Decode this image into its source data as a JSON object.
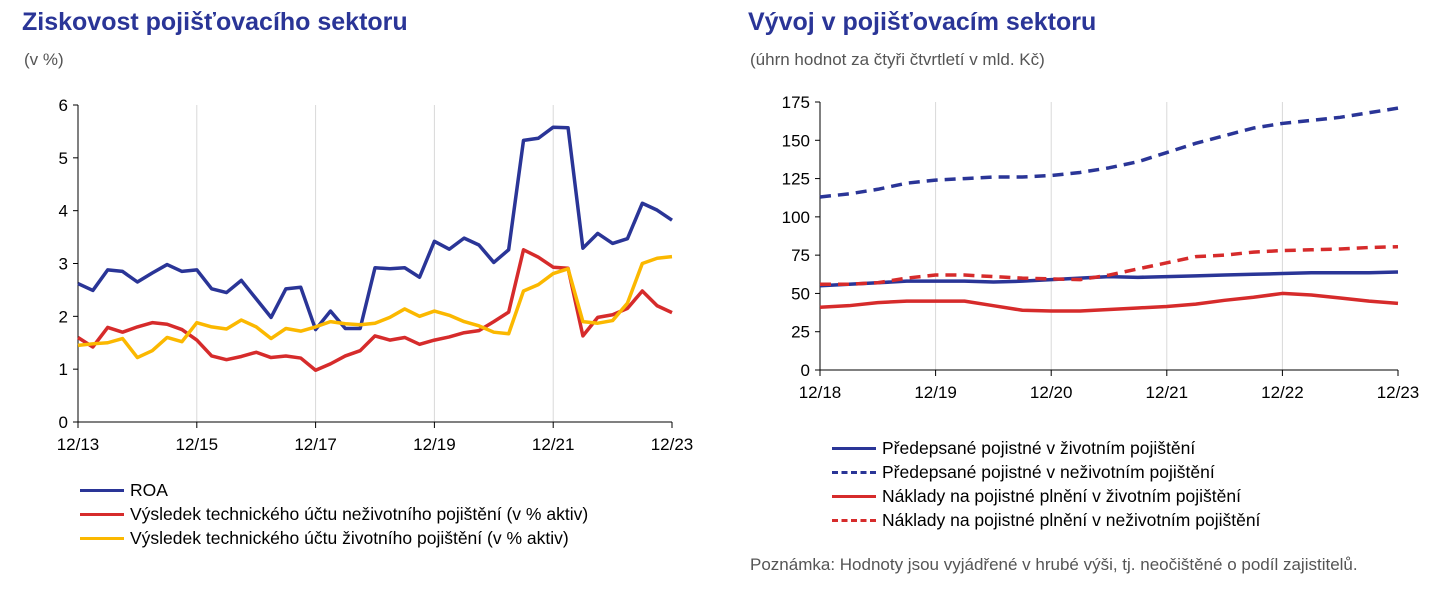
{
  "chart_data": [
    {
      "type": "line",
      "title": "Ziskovost pojišťovacího sektoru",
      "subtitle": "(v %)",
      "x_ticks": [
        "12/13",
        "12/15",
        "12/17",
        "12/19",
        "12/21",
        "12/23"
      ],
      "x_start": "12/13",
      "x_end": "12/23",
      "ylim": [
        0,
        6
      ],
      "y_ticks": [
        0,
        1,
        2,
        3,
        4,
        5,
        6
      ],
      "grid": "vertical",
      "legend_position": "bottom",
      "series": [
        {
          "name": "ROA",
          "color": "#2a3597",
          "dash": "solid",
          "values": [
            2.62,
            2.49,
            2.88,
            2.85,
            2.65,
            2.82,
            2.98,
            2.85,
            2.88,
            2.52,
            2.45,
            2.68,
            2.33,
            1.98,
            2.52,
            2.55,
            1.75,
            2.1,
            1.77,
            1.77,
            2.92,
            2.9,
            2.92,
            2.74,
            3.42,
            3.27,
            3.48,
            3.35,
            3.02,
            3.26,
            5.33,
            5.37,
            5.58,
            5.57,
            3.29,
            3.57,
            3.38,
            3.47,
            4.14,
            4.01,
            3.82
          ]
        },
        {
          "name": "Výsledek technického účtu neživotního pojištění (v % aktiv)",
          "color": "#d62b2b",
          "dash": "solid",
          "values": [
            1.6,
            1.42,
            1.79,
            1.7,
            1.8,
            1.88,
            1.85,
            1.75,
            1.55,
            1.25,
            1.18,
            1.24,
            1.32,
            1.22,
            1.25,
            1.21,
            0.98,
            1.1,
            1.25,
            1.35,
            1.63,
            1.55,
            1.6,
            1.47,
            1.55,
            1.61,
            1.69,
            1.73,
            1.9,
            2.08,
            3.26,
            3.12,
            2.93,
            2.91,
            1.63,
            1.98,
            2.03,
            2.15,
            2.48,
            2.2,
            2.07
          ]
        },
        {
          "name": "Výsledek technického účtu životního pojištění (v % aktiv)",
          "color": "#fbb800",
          "dash": "solid",
          "values": [
            1.45,
            1.48,
            1.5,
            1.58,
            1.22,
            1.35,
            1.6,
            1.52,
            1.88,
            1.8,
            1.76,
            1.93,
            1.8,
            1.58,
            1.77,
            1.72,
            1.8,
            1.9,
            1.86,
            1.84,
            1.87,
            1.98,
            2.14,
            2.0,
            2.1,
            2.02,
            1.9,
            1.82,
            1.7,
            1.67,
            2.48,
            2.6,
            2.81,
            2.9,
            1.9,
            1.87,
            1.92,
            2.25,
            3.0,
            3.1,
            3.13
          ]
        }
      ]
    },
    {
      "type": "line",
      "title": "Vývoj v pojišťovacím sektoru",
      "subtitle": "(úhrn hodnot za čtyři čtvrtletí v mld. Kč)",
      "x_ticks": [
        "12/18",
        "12/19",
        "12/20",
        "12/21",
        "12/22",
        "12/23"
      ],
      "x_start": "12/18",
      "x_end": "12/23",
      "ylim": [
        0,
        175
      ],
      "y_ticks": [
        0,
        25,
        50,
        75,
        100,
        125,
        150,
        175
      ],
      "grid": "vertical",
      "legend_position": "bottom",
      "series": [
        {
          "name": "Předepsané pojistné v životním pojištění",
          "color": "#2a3597",
          "dash": "solid",
          "values": [
            55,
            56,
            57,
            58,
            58,
            58,
            57.5,
            58,
            59,
            60,
            61,
            60.5,
            61,
            61.5,
            62,
            62.5,
            63,
            63.5,
            63.5,
            63.5,
            64
          ]
        },
        {
          "name": "Předepsané pojistné v neživotním pojištění",
          "color": "#2a3597",
          "dash": "dashed",
          "values": [
            113,
            115,
            118,
            122,
            124,
            125,
            126,
            126,
            127,
            129,
            132,
            136,
            142,
            148,
            153,
            158,
            161,
            163,
            165,
            168,
            171
          ]
        },
        {
          "name": "Náklady na pojistné plnění v životním pojištění",
          "color": "#d62b2b",
          "dash": "solid",
          "values": [
            41,
            42,
            44,
            45,
            45,
            45,
            42,
            39,
            38.5,
            38.5,
            39.5,
            40.5,
            41.5,
            43,
            45.5,
            47.5,
            50,
            49,
            47,
            45,
            43.5
          ]
        },
        {
          "name": "Náklady na pojistné plnění v neživotním pojištění",
          "color": "#d62b2b",
          "dash": "dashed",
          "values": [
            56,
            56,
            57,
            60,
            62,
            62,
            61,
            60,
            59.5,
            59,
            62,
            66,
            70,
            74,
            75,
            77,
            78,
            78.5,
            79,
            80,
            80.5
          ]
        }
      ]
    }
  ],
  "note": "Poznámka: Hodnoty jsou vyjádřené v hrubé výši, tj. neočištěné o podíl zajistitelů."
}
